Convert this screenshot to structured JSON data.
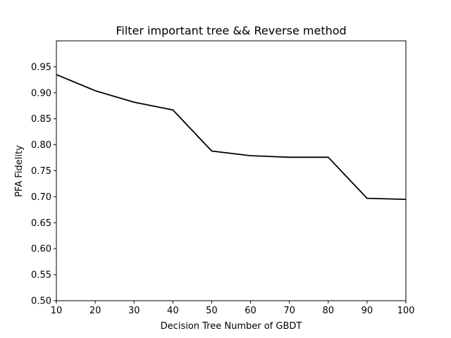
{
  "chart_data": {
    "type": "line",
    "title": "Filter important tree && Reverse method",
    "xlabel": "Decision Tree Number of GBDT",
    "ylabel": "PFA Fidelity",
    "xlim": [
      10,
      100
    ],
    "ylim": [
      0.5,
      1.0
    ],
    "xticks": [
      "10",
      "20",
      "30",
      "40",
      "50",
      "60",
      "70",
      "80",
      "90",
      "100"
    ],
    "yticks": [
      "0.50",
      "0.55",
      "0.60",
      "0.65",
      "0.70",
      "0.75",
      "0.80",
      "0.85",
      "0.90",
      "0.95"
    ],
    "grid": false,
    "x": [
      10,
      20,
      30,
      40,
      50,
      60,
      70,
      80,
      90,
      100
    ],
    "series": [
      {
        "values": [
          0.935,
          0.904,
          0.882,
          0.867,
          0.788,
          0.779,
          0.776,
          0.776,
          0.697,
          0.695
        ],
        "color": "#000000"
      }
    ]
  }
}
